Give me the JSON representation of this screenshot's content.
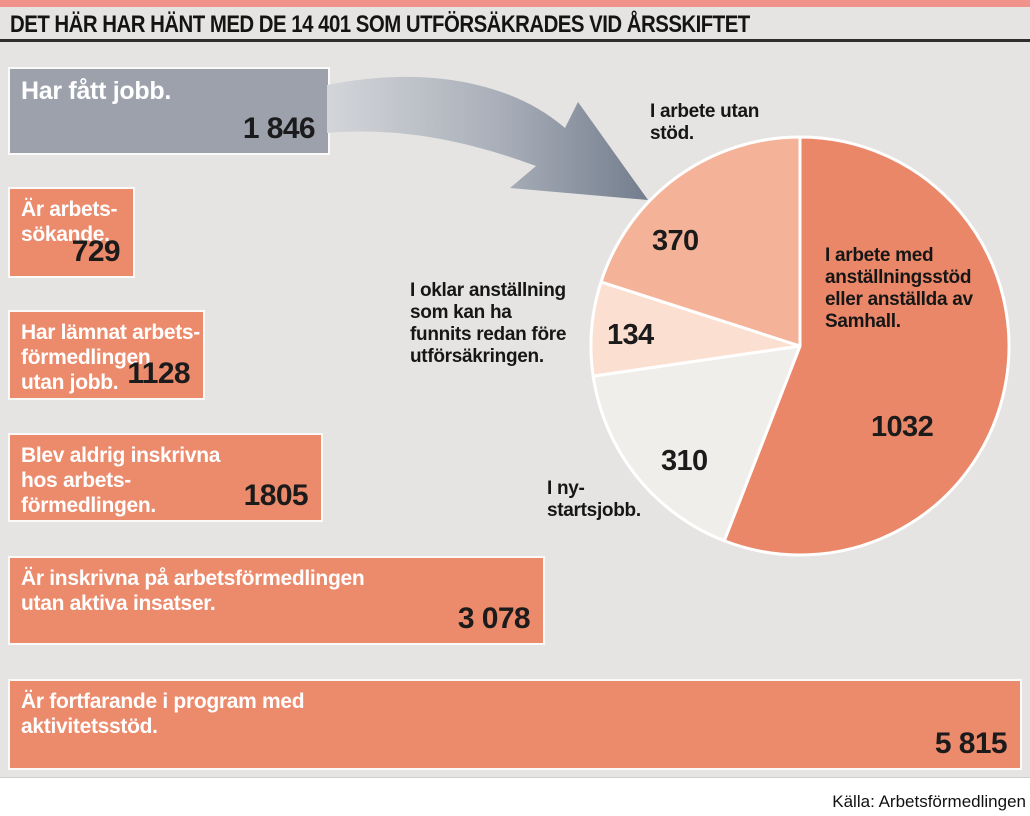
{
  "header": {
    "title": "DET HÄR HAR HÄNT MED DE 14 401 SOM UTFÖRSÄKRADES VID ÅRSSKIFTET",
    "total": 14401
  },
  "footer": {
    "source": "Källa: Arbetsförmedlingen"
  },
  "colors": {
    "background": "#E5E4E2",
    "top_strip": "#F2938B",
    "title_rule": "#2E2E2E",
    "salmon_bar": "#EC8A6C",
    "gray_bar": "#9CA1AC",
    "arrow_gradient_start": "#D3D5D9",
    "arrow_gradient_end": "#737D8D",
    "pie_stroke": "#FFFFFF"
  },
  "chart_data": [
    {
      "type": "bar",
      "orientation": "horizontal",
      "value_axis_hidden": true,
      "categories": [
        "Har fått jobb.",
        "Är arbets-\nsökande.",
        "Har lämnat arbets-\nförmedlingen\nutan jobb.",
        "Blev aldrig inskrivna\nhos arbets-\nförmedlingen.",
        "Är inskrivna på arbetsförmedlingen\nutan aktiva insatser.",
        "Är fortfarande i program med\naktivitetsstöd."
      ],
      "values": [
        1846,
        729,
        1128,
        1805,
        3078,
        5815
      ],
      "value_labels": [
        "1 846",
        "729",
        "1128",
        "1805",
        "3 078",
        "5 815"
      ],
      "bar_colors": [
        "#9CA1AC",
        "#EC8A6C",
        "#EC8A6C",
        "#EC8A6C",
        "#EC8A6C",
        "#EC8A6C"
      ]
    },
    {
      "type": "pie",
      "total": 1846,
      "start_angle_deg": 0,
      "direction": "clockwise",
      "slices": [
        {
          "label": "I arbete med\nanställningsstöd\neller anställda av\nSamhall.",
          "value": 1032,
          "value_label": "1032",
          "color": "#EA8768"
        },
        {
          "label": "I ny-\nstartsjobb.",
          "value": 310,
          "value_label": "310",
          "color": "#F0EEEB"
        },
        {
          "label": "I oklar anställning\nsom kan ha\nfunnits redan före\nutförsäkringen.",
          "value": 134,
          "value_label": "134",
          "color": "#FBDFD0"
        },
        {
          "label": "I arbete utan\nstöd.",
          "value": 370,
          "value_label": "370",
          "color": "#F4B399"
        }
      ]
    }
  ]
}
